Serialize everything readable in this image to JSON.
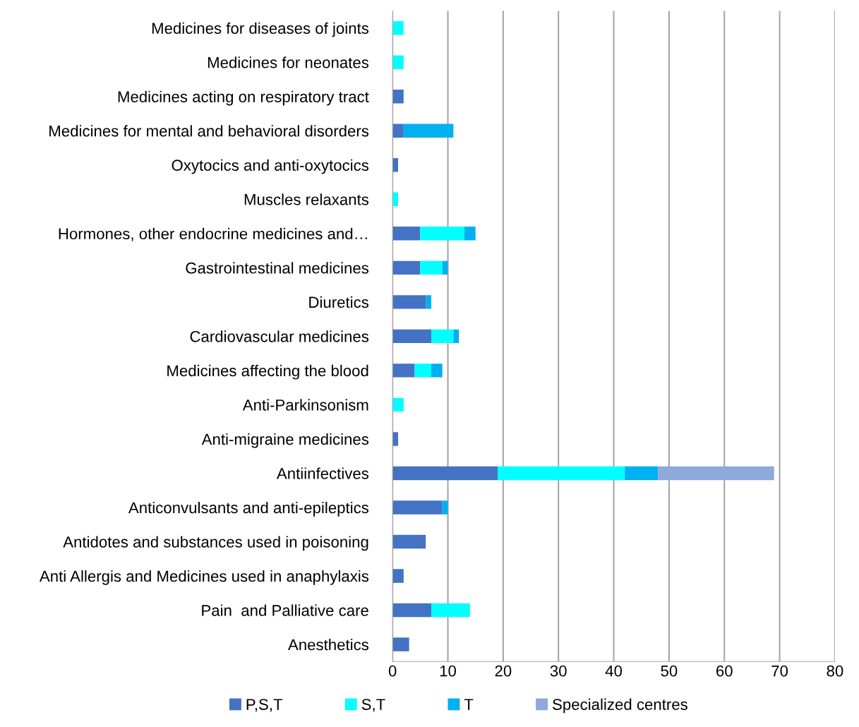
{
  "chart_data": {
    "type": "bar",
    "orientation": "horizontal",
    "stacked": true,
    "categories": [
      "Medicines for diseases of joints",
      "Medicines for neonates",
      "Medicines acting on respiratory tract",
      "Medicines for mental and behavioral disorders",
      "Oxytocics and anti-oxytocics",
      "Muscles relaxants",
      "Hormones, other endocrine medicines and…",
      "Gastrointestinal medicines",
      "Diuretics",
      "Cardiovascular medicines",
      "Medicines affecting the blood",
      "Anti-Parkinsonism",
      "Anti-migraine medicines",
      "Antiinfectives",
      "Anticonvulsants and anti-epileptics",
      "Antidotes and substances used in poisoning",
      "Anti Allergis and Medicines used in anaphylaxis",
      "Pain  and Palliative care",
      "Anesthetics"
    ],
    "series": [
      {
        "name": "P,S,T",
        "color": "#4472c4",
        "values": [
          null,
          null,
          2,
          2,
          1,
          null,
          5,
          5,
          6,
          7,
          4,
          null,
          1,
          19,
          9,
          6,
          2,
          7,
          3
        ]
      },
      {
        "name": "S,T",
        "color": "#00ffff",
        "values": [
          2,
          2,
          null,
          null,
          null,
          1,
          8,
          4,
          null,
          4,
          3,
          2,
          null,
          23,
          null,
          null,
          null,
          7,
          null
        ]
      },
      {
        "name": "T",
        "color": "#00b0f0",
        "values": [
          null,
          null,
          null,
          9,
          null,
          null,
          2,
          1,
          1,
          1,
          2,
          null,
          null,
          6,
          1,
          null,
          null,
          null,
          null
        ]
      },
      {
        "name": "Specialized centres",
        "color": "#8eaadb",
        "values": [
          null,
          null,
          null,
          null,
          null,
          null,
          null,
          null,
          null,
          null,
          null,
          null,
          null,
          21,
          null,
          null,
          null,
          null,
          null
        ]
      }
    ],
    "xlim": [
      0,
      80
    ],
    "xticks": [
      0,
      10,
      20,
      30,
      40,
      50,
      60,
      70,
      80
    ],
    "grid": "x",
    "legend": "bottom"
  }
}
